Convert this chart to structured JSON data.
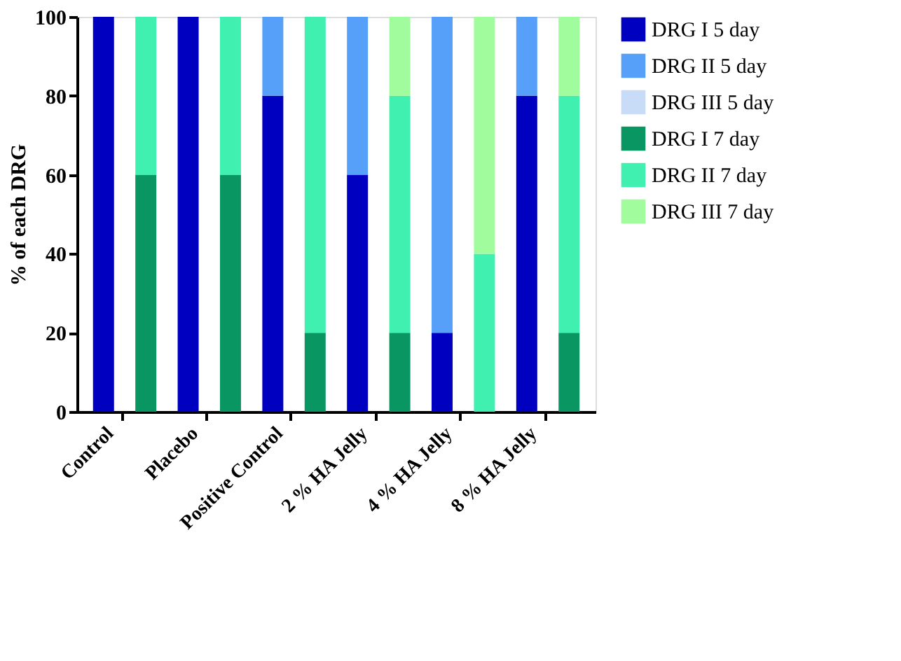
{
  "chart_data": {
    "type": "bar",
    "stacked": true,
    "ylabel": "% of each DRG",
    "categories": [
      "Control",
      null,
      "Placebo",
      null,
      "Positive Control",
      null,
      "2 % HA Jelly",
      null,
      "4 % HA Jelly",
      null,
      "8 % HA Jelly",
      null
    ],
    "series": [
      {
        "name": "DRG I 5 day",
        "color": "#0000c0",
        "values": [
          100,
          null,
          100,
          null,
          80,
          null,
          60,
          null,
          20,
          null,
          80,
          null
        ]
      },
      {
        "name": "DRG II 5 day",
        "color": "#57a0fa",
        "values": [
          0,
          null,
          0,
          null,
          20,
          null,
          40,
          null,
          80,
          null,
          20,
          null
        ]
      },
      {
        "name": "DRG III 5 day",
        "color": "#c8dcf8",
        "values": [
          0,
          null,
          0,
          null,
          0,
          null,
          0,
          null,
          0,
          null,
          0,
          null
        ]
      },
      {
        "name": "DRG I 7 day",
        "color": "#0a9662",
        "values": [
          null,
          60,
          null,
          60,
          null,
          20,
          null,
          20,
          null,
          0,
          null,
          20
        ]
      },
      {
        "name": "DRG II 7 day",
        "color": "#40f0b0",
        "values": [
          null,
          40,
          null,
          40,
          null,
          80,
          null,
          60,
          null,
          40,
          null,
          60
        ]
      },
      {
        "name": "DRG III 7 day",
        "color": "#a0fc9c",
        "values": [
          null,
          0,
          null,
          0,
          null,
          0,
          null,
          20,
          null,
          60,
          null,
          20
        ]
      }
    ],
    "ylim": [
      0,
      100
    ],
    "yticks": [
      0,
      20,
      40,
      60,
      80,
      100
    ],
    "grid": false,
    "legend": "right"
  }
}
